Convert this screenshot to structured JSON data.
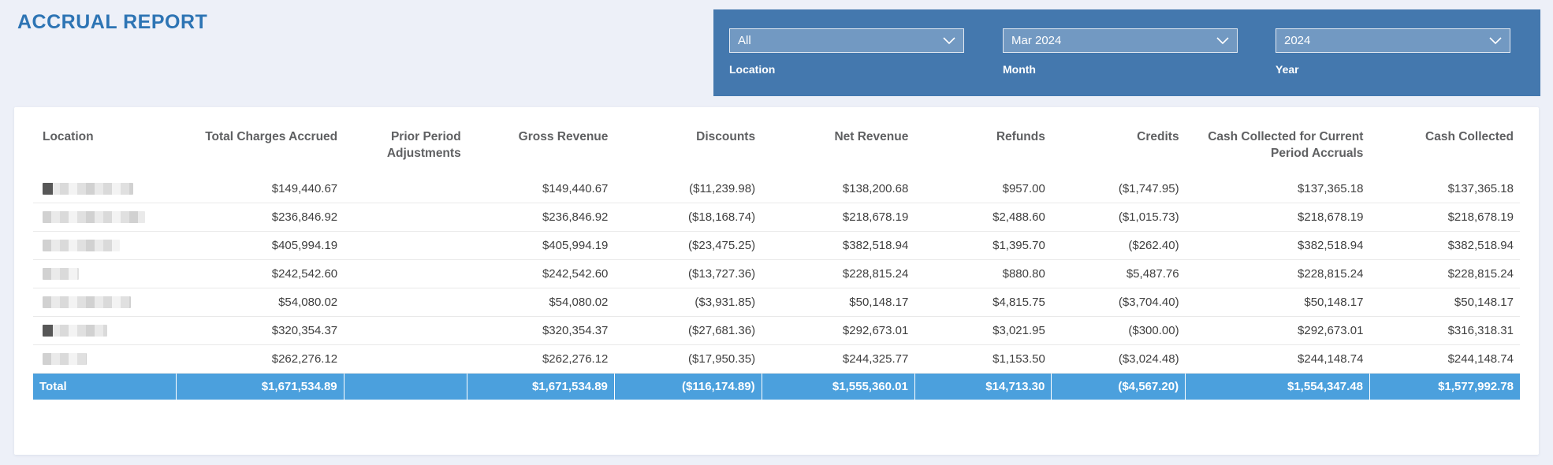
{
  "page": {
    "title": "ACCRUAL REPORT",
    "background_color": "#edf0f8",
    "title_color": "#2d74b4"
  },
  "filters": {
    "panel_color": "#4478ae",
    "dropdown_color": "#7299c2",
    "items": [
      {
        "label": "Location",
        "value": "All"
      },
      {
        "label": "Month",
        "value": "Mar 2024"
      },
      {
        "label": "Year",
        "value": "2024"
      }
    ]
  },
  "table": {
    "columns": [
      "Location",
      "Total Charges Accrued",
      "Prior Period Adjustments",
      "Gross Revenue",
      "Discounts",
      "Net Revenue",
      "Refunds",
      "Credits",
      "Cash Collected for Current Period Accruals",
      "Cash Collected"
    ],
    "rows": [
      {
        "location_redacted": true,
        "blur_width": 115,
        "lead_dark": true,
        "values": [
          "$149,440.67",
          "",
          "$149,440.67",
          "($11,239.98)",
          "$138,200.68",
          "$957.00",
          "($1,747.95)",
          "$137,365.18",
          "$137,365.18"
        ]
      },
      {
        "location_redacted": true,
        "blur_width": 130,
        "lead_dark": false,
        "values": [
          "$236,846.92",
          "",
          "$236,846.92",
          "($18,168.74)",
          "$218,678.19",
          "$2,488.60",
          "($1,015.73)",
          "$218,678.19",
          "$218,678.19"
        ]
      },
      {
        "location_redacted": true,
        "blur_width": 98,
        "lead_dark": false,
        "values": [
          "$405,994.19",
          "",
          "$405,994.19",
          "($23,475.25)",
          "$382,518.94",
          "$1,395.70",
          "($262.40)",
          "$382,518.94",
          "$382,518.94"
        ]
      },
      {
        "location_redacted": true,
        "blur_width": 46,
        "lead_dark": false,
        "values": [
          "$242,542.60",
          "",
          "$242,542.60",
          "($13,727.36)",
          "$228,815.24",
          "$880.80",
          "$5,487.76",
          "$228,815.24",
          "$228,815.24"
        ]
      },
      {
        "location_redacted": true,
        "blur_width": 112,
        "lead_dark": false,
        "values": [
          "$54,080.02",
          "",
          "$54,080.02",
          "($3,931.85)",
          "$50,148.17",
          "$4,815.75",
          "($3,704.40)",
          "$50,148.17",
          "$50,148.17"
        ]
      },
      {
        "location_redacted": true,
        "blur_width": 82,
        "lead_dark": true,
        "values": [
          "$320,354.37",
          "",
          "$320,354.37",
          "($27,681.36)",
          "$292,673.01",
          "$3,021.95",
          "($300.00)",
          "$292,673.01",
          "$316,318.31"
        ]
      },
      {
        "location_redacted": true,
        "blur_width": 56,
        "lead_dark": false,
        "values": [
          "$262,276.12",
          "",
          "$262,276.12",
          "($17,950.35)",
          "$244,325.77",
          "$1,153.50",
          "($3,024.48)",
          "$244,148.74",
          "$244,148.74"
        ]
      }
    ],
    "total": {
      "label": "Total",
      "values": [
        "$1,671,534.89",
        "",
        "$1,671,534.89",
        "($116,174.89)",
        "$1,555,360.01",
        "$14,713.30",
        "($4,567.20)",
        "$1,554,347.48",
        "$1,577,992.78"
      ]
    },
    "total_row_color": "#4ba0dd"
  }
}
